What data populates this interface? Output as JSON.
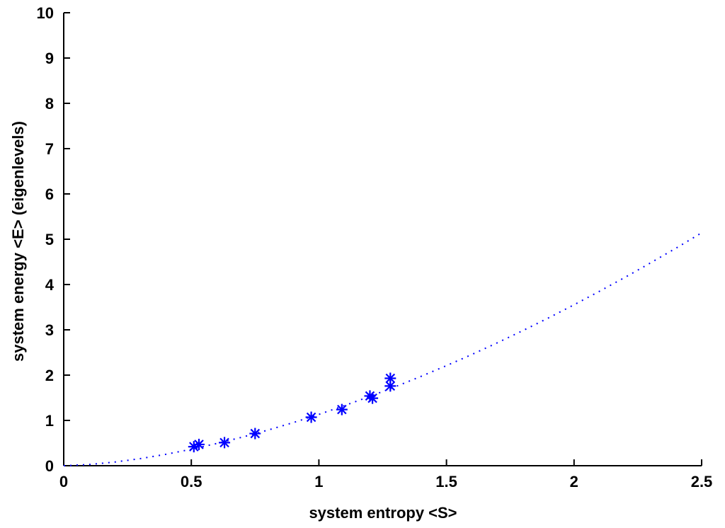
{
  "chart_data": {
    "type": "scatter",
    "title": "",
    "xlabel": "system entropy <S>",
    "ylabel": "system energy <E> (eigenlevels)",
    "xlim": [
      0,
      2.5
    ],
    "ylim": [
      0,
      10
    ],
    "x_ticks": [
      0,
      0.5,
      1,
      1.5,
      2,
      2.5
    ],
    "x_tick_labels": [
      "0",
      "0.5",
      "1",
      "1.5",
      "2",
      "2.5"
    ],
    "y_ticks": [
      0,
      1,
      2,
      3,
      4,
      5,
      6,
      7,
      8,
      9,
      10
    ],
    "y_tick_labels": [
      "0",
      "1",
      "2",
      "3",
      "4",
      "5",
      "6",
      "7",
      "8",
      "9",
      "10"
    ],
    "grid": false,
    "legend": "none",
    "series": [
      {
        "marker": "asterisk",
        "color": "#0000ff",
        "x": [
          0.51,
          0.53,
          0.63,
          0.75,
          0.97,
          1.09,
          1.2,
          1.21,
          1.28,
          1.28
        ],
        "y": [
          0.42,
          0.47,
          0.51,
          0.71,
          1.07,
          1.24,
          1.54,
          1.49,
          1.93,
          1.76
        ]
      },
      {
        "line": "dotted",
        "color": "#0000ff",
        "x": [
          0,
          0.1,
          0.2,
          0.3,
          0.4,
          0.5,
          0.6,
          0.7,
          0.8,
          0.9,
          1.0,
          1.1,
          1.2,
          1.3,
          1.4,
          1.5,
          1.6,
          1.7,
          1.8,
          1.9,
          2.0,
          2.1,
          2.2,
          2.3,
          2.4,
          2.5
        ],
        "y": [
          0,
          0.026,
          0.081,
          0.157,
          0.252,
          0.364,
          0.49,
          0.631,
          0.786,
          0.953,
          1.133,
          1.326,
          1.53,
          1.745,
          1.972,
          2.209,
          2.457,
          2.716,
          2.985,
          3.264,
          3.553,
          3.851,
          4.16,
          4.478,
          4.805,
          5.142
        ]
      }
    ]
  }
}
